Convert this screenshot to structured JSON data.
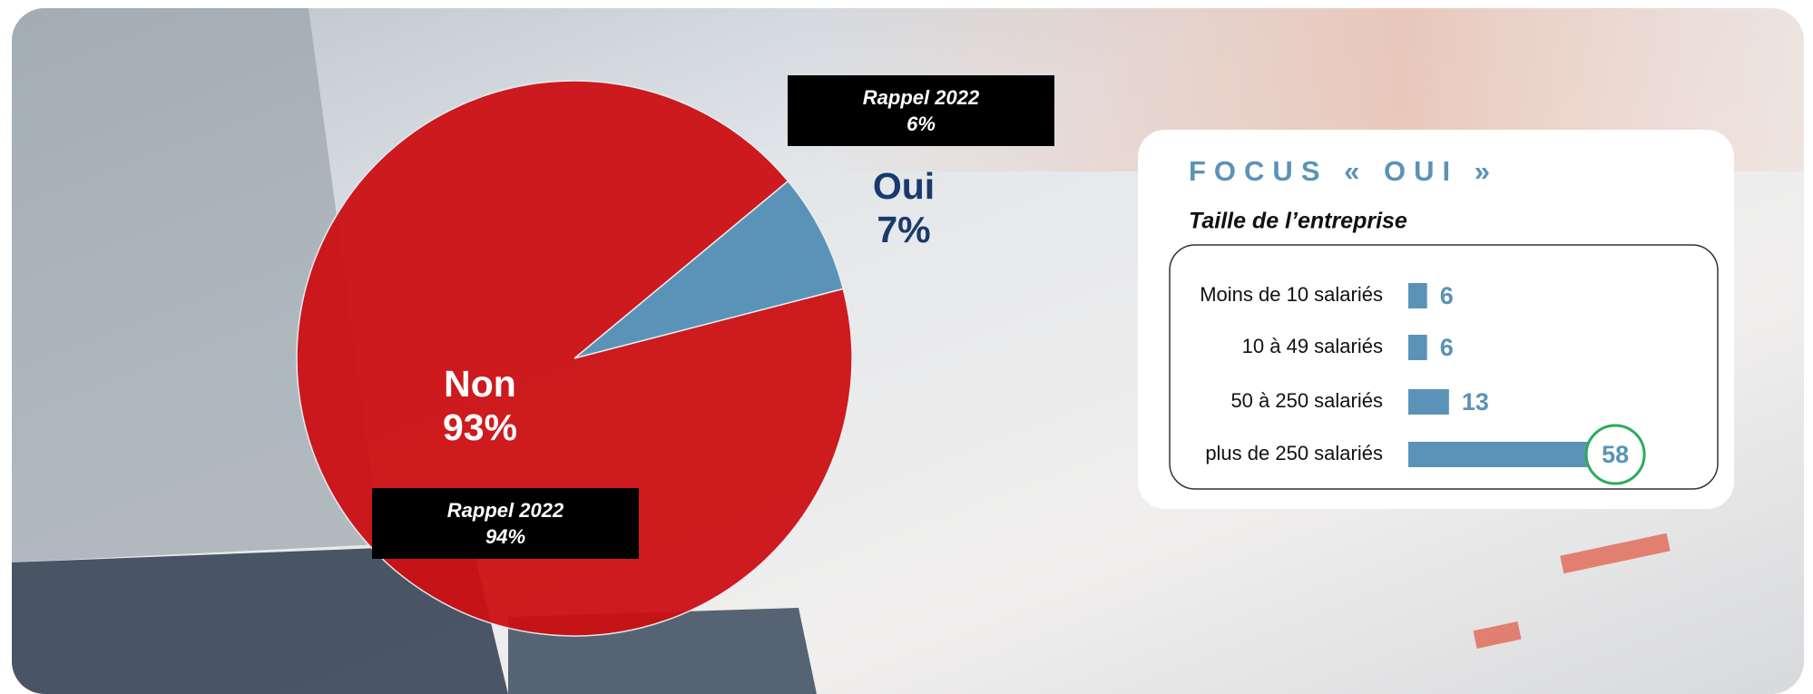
{
  "chart_data": [
    {
      "type": "pie",
      "categories": [
        "Oui",
        "Non"
      ],
      "values": [
        7,
        93
      ],
      "value_labels": [
        "7%",
        "93%"
      ],
      "colors": [
        "#5b93b8",
        "#cc1014"
      ],
      "annotations": [
        {
          "text": "Rappel 2022",
          "value": 6,
          "value_label": "6%"
        },
        {
          "text": "Rappel 2022",
          "value": 94,
          "value_label": "94%"
        }
      ]
    },
    {
      "type": "bar",
      "orientation": "horizontal",
      "title": "FOCUS « OUI »",
      "subtitle": "Taille de l’entreprise",
      "categories": [
        "Moins de 10 salariés",
        "10 à 49 salariés",
        "50 à 250 salariés",
        "plus de 250 salariés"
      ],
      "values": [
        6,
        6,
        13,
        58
      ],
      "color": "#5b93b8",
      "highlight_index": 3,
      "highlight_color": "#2eaa5c"
    }
  ]
}
